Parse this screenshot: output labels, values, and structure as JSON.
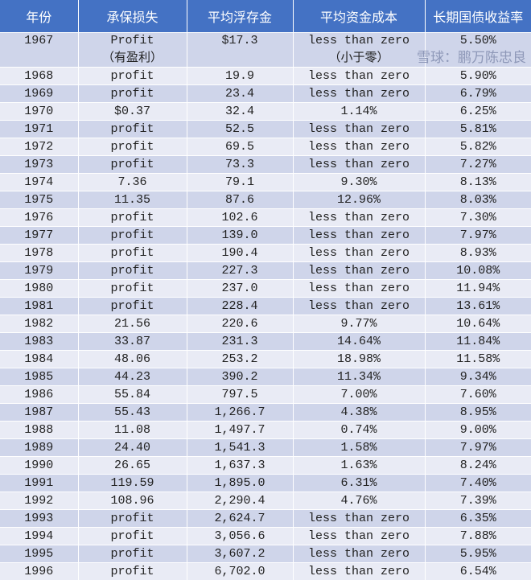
{
  "header": [
    "年份",
    "承保损失",
    "平均浮存金",
    "平均资金成本",
    "长期国债收益率"
  ],
  "rows": [
    {
      "year": "1967",
      "loss": "Profit",
      "loss_cn": "（有盈利）",
      "float": "$17.3",
      "cost": "less than zero",
      "cost_cn": "（小于零）",
      "yield": "5.50%"
    },
    {
      "year": "1968",
      "loss": "profit",
      "float": "19.9",
      "cost": "less than zero",
      "yield": "5.90%"
    },
    {
      "year": "1969",
      "loss": "profit",
      "float": "23.4",
      "cost": "less than zero",
      "yield": "6.79%"
    },
    {
      "year": "1970",
      "loss": "$0.37",
      "float": "32.4",
      "cost": "1.14%",
      "yield": "6.25%"
    },
    {
      "year": "1971",
      "loss": "profit",
      "float": "52.5",
      "cost": "less than zero",
      "yield": "5.81%"
    },
    {
      "year": "1972",
      "loss": "profit",
      "float": "69.5",
      "cost": "less than zero",
      "yield": "5.82%"
    },
    {
      "year": "1973",
      "loss": "profit",
      "float": "73.3",
      "cost": "less than zero",
      "yield": "7.27%"
    },
    {
      "year": "1974",
      "loss": "7.36",
      "float": "79.1",
      "cost": "9.30%",
      "yield": "8.13%"
    },
    {
      "year": "1975",
      "loss": "11.35",
      "float": "87.6",
      "cost": "12.96%",
      "yield": "8.03%"
    },
    {
      "year": "1976",
      "loss": "profit",
      "float": "102.6",
      "cost": "less than zero",
      "yield": "7.30%"
    },
    {
      "year": "1977",
      "loss": "profit",
      "float": "139.0",
      "cost": "less than zero",
      "yield": "7.97%"
    },
    {
      "year": "1978",
      "loss": "profit",
      "float": "190.4",
      "cost": "less than zero",
      "yield": "8.93%"
    },
    {
      "year": "1979",
      "loss": "profit",
      "float": "227.3",
      "cost": "less than zero",
      "yield": "10.08%"
    },
    {
      "year": "1980",
      "loss": "profit",
      "float": "237.0",
      "cost": "less than zero",
      "yield": "11.94%"
    },
    {
      "year": "1981",
      "loss": "profit",
      "float": "228.4",
      "cost": "less than zero",
      "yield": "13.61%"
    },
    {
      "year": "1982",
      "loss": "21.56",
      "float": "220.6",
      "cost": "9.77%",
      "yield": "10.64%"
    },
    {
      "year": "1983",
      "loss": "33.87",
      "float": "231.3",
      "cost": "14.64%",
      "yield": "11.84%"
    },
    {
      "year": "1984",
      "loss": "48.06",
      "float": "253.2",
      "cost": "18.98%",
      "yield": "11.58%"
    },
    {
      "year": "1985",
      "loss": "44.23",
      "float": "390.2",
      "cost": "11.34%",
      "yield": "9.34%"
    },
    {
      "year": "1986",
      "loss": "55.84",
      "float": "797.5",
      "cost": "7.00%",
      "yield": "7.60%"
    },
    {
      "year": "1987",
      "loss": "55.43",
      "float": "1,266.7",
      "cost": "4.38%",
      "yield": "8.95%"
    },
    {
      "year": "1988",
      "loss": "11.08",
      "float": "1,497.7",
      "cost": "0.74%",
      "yield": "9.00%"
    },
    {
      "year": "1989",
      "loss": "24.40",
      "float": "1,541.3",
      "cost": "1.58%",
      "yield": "7.97%"
    },
    {
      "year": "1990",
      "loss": "26.65",
      "float": "1,637.3",
      "cost": "1.63%",
      "yield": "8.24%"
    },
    {
      "year": "1991",
      "loss": "119.59",
      "float": "1,895.0",
      "cost": "6.31%",
      "yield": "7.40%"
    },
    {
      "year": "1992",
      "loss": "108.96",
      "float": "2,290.4",
      "cost": "4.76%",
      "yield": "7.39%"
    },
    {
      "year": "1993",
      "loss": "profit",
      "float": "2,624.7",
      "cost": "less than zero",
      "yield": "6.35%"
    },
    {
      "year": "1994",
      "loss": "profit",
      "float": "3,056.6",
      "cost": "less than zero",
      "yield": "7.88%"
    },
    {
      "year": "1995",
      "loss": "profit",
      "float": "3,607.2",
      "cost": "less than zero",
      "yield": "5.95%"
    },
    {
      "year": "1996",
      "loss": "profit",
      "float": "6,702.0",
      "cost": "less than zero",
      "yield": "6.54%"
    }
  ],
  "watermark": "雪球：鹏万陈忠良",
  "colors": {
    "header_bg": "#4472c4",
    "row_dark": "#cfd5ea",
    "row_light": "#e9ebf5"
  }
}
